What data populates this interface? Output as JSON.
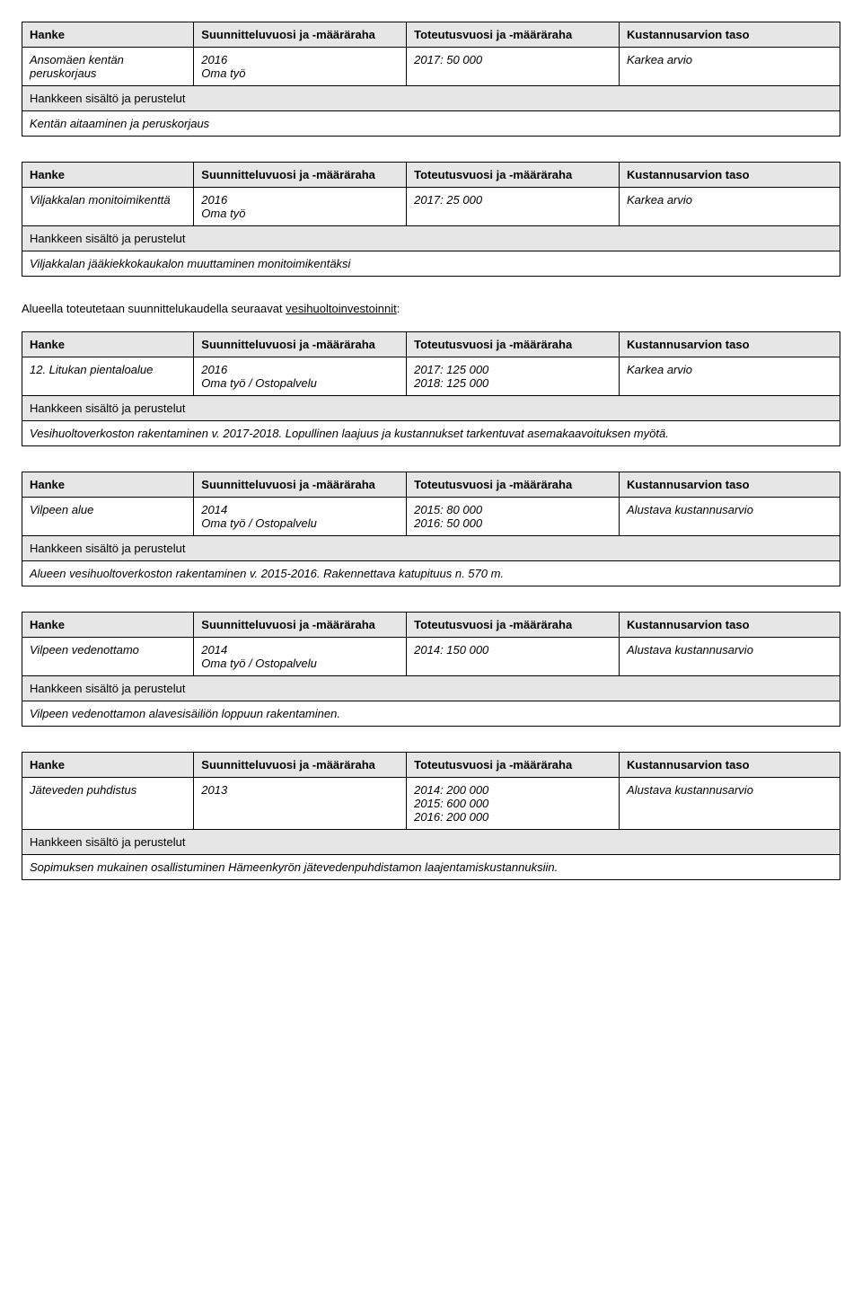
{
  "headers": {
    "hanke": "Hanke",
    "suunnittelu": "Suunnitteluvuosi ja -määräraha",
    "toteutus": "Toteutusvuosi ja -määräraha",
    "kustannus": "Kustannusarvion taso",
    "sisalto": "Hankkeen sisältö ja perustelut"
  },
  "section_intro": {
    "pre": "Alueella toteutetaan suunnittelukaudella seuraavat ",
    "underlined": "vesihuoltoinvestoinnit",
    "post": ":"
  },
  "tables": [
    {
      "name": "Ansomäen kentän peruskorjaus",
      "plan": "2016\nOma työ",
      "impl": "2017: 50 000",
      "cost": "Karkea arvio",
      "desc": "Kentän aitaaminen ja peruskorjaus"
    },
    {
      "name": "Viljakkalan monitoimikenttä",
      "plan": "2016\nOma työ",
      "impl": "2017: 25 000",
      "cost": "Karkea arvio",
      "desc": "Viljakkalan jääkiekkokaukalon muuttaminen monitoimikentäksi"
    },
    {
      "name": "12. Litukan pientaloalue",
      "plan": "2016\nOma työ / Ostopalvelu",
      "impl": "2017: 125 000\n2018: 125 000",
      "cost": "Karkea arvio",
      "desc": "Vesihuoltoverkoston rakentaminen v. 2017-2018. Lopullinen laajuus ja kustannukset tarkentuvat asemakaavoituksen myötä."
    },
    {
      "name": "Vilpeen alue",
      "plan": "2014\nOma työ / Ostopalvelu",
      "impl": "2015: 80 000\n2016: 50 000",
      "cost": "Alustava kustannusarvio",
      "desc": "Alueen vesihuoltoverkoston rakentaminen v. 2015-2016. Rakennettava katupituus n. 570 m."
    },
    {
      "name": "Vilpeen vedenottamo",
      "plan": "2014\nOma työ / Ostopalvelu",
      "impl": "2014: 150 000",
      "cost": "Alustava kustannusarvio",
      "desc": "Vilpeen vedenottamon alavesisäiliön loppuun rakentaminen."
    },
    {
      "name": "Jäteveden puhdistus",
      "plan": "2013",
      "impl": "2014: 200 000\n2015: 600 000\n2016: 200 000",
      "cost": "Alustava kustannusarvio",
      "desc": "Sopimuksen mukainen osallistuminen Hämeenkyrön jätevedenpuhdistamon laajentamiskustannuksiin."
    }
  ],
  "layout": {
    "sub_header_after_data": [
      false,
      false,
      false,
      true,
      false,
      true
    ],
    "section_intro_before_index": 2
  }
}
